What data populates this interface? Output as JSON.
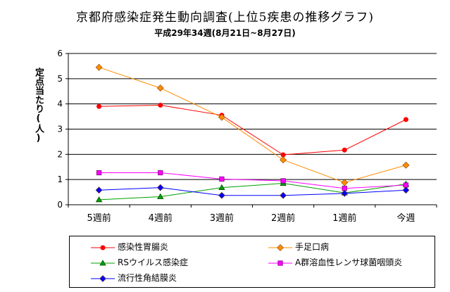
{
  "header": {
    "title": "京都府感染症発生動向調査(上位5疾患の推移グラフ)",
    "subtitle": "平成29年34週(8月21日~8月27日)"
  },
  "chart_data": {
    "type": "line",
    "title": "京都府感染症発生動向調査(上位5疾患の推移グラフ)",
    "subtitle": "平成29年34週(8月21日~8月27日)",
    "ylabel": "定点当たり(人)",
    "xlabel": "",
    "categories": [
      "5週前",
      "4週前",
      "3週前",
      "2週前",
      "1週前",
      "今週"
    ],
    "ylim": [
      0,
      6
    ],
    "yticks": [
      0,
      1,
      2,
      3,
      4,
      5,
      6
    ],
    "grid": true,
    "legend_position": "bottom",
    "series": [
      {
        "name": "感染性胃腸炎",
        "color": "#ff0000",
        "marker": "circle",
        "values": [
          3.9,
          3.95,
          3.55,
          1.98,
          2.17,
          3.38
        ]
      },
      {
        "name": "手足口病",
        "color": "#ff8c00",
        "marker": "diamond",
        "values": [
          5.45,
          4.63,
          3.47,
          1.78,
          0.88,
          1.57
        ]
      },
      {
        "name": "RSウイルス感染症",
        "color": "#00a000",
        "marker": "triangle",
        "values": [
          0.2,
          0.32,
          0.68,
          0.85,
          0.47,
          0.82
        ]
      },
      {
        "name": "A群溶血性レンサ球菌咽頭炎",
        "color": "#ff00ff",
        "marker": "square",
        "values": [
          1.27,
          1.27,
          1.02,
          0.95,
          0.65,
          0.78
        ]
      },
      {
        "name": "流行性角結膜炎",
        "color": "#0000ff",
        "marker": "diamond",
        "values": [
          0.58,
          0.68,
          0.37,
          0.37,
          0.45,
          0.58
        ]
      }
    ]
  }
}
